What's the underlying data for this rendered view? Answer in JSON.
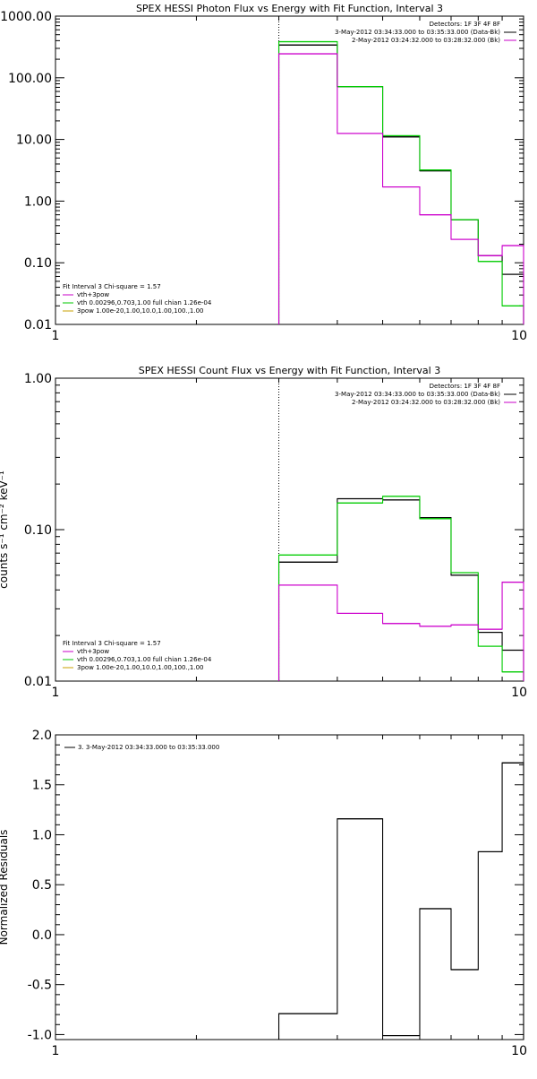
{
  "chart_data": [
    {
      "type": "line",
      "title": "SPEX HESSI Photon Flux vs Energy with Fit Function, Interval 3",
      "xlabel": "",
      "ylabel": "",
      "xscale": "log",
      "yscale": "log",
      "xlim": [
        1,
        10
      ],
      "ylim": [
        0.01,
        1000
      ],
      "x_ticks": [
        "1",
        "10"
      ],
      "y_ticks": [
        "0.01",
        "0.10",
        "1.00",
        "10.00",
        "100.00",
        "1000.00"
      ],
      "y_tick_values": [
        0.01,
        0.1,
        1,
        10,
        100,
        1000
      ],
      "vline": 3,
      "legend_top": [
        "Detectors: 1F 3F 4F 8F",
        "3-May-2012 03:34:33.000 to 03:35:33.000 (Data-Bk)",
        "2-May-2012 03:24:32.000 to 03:28:32.000 (Bk)"
      ],
      "legend_top_colors": [
        "",
        "#000000",
        "#c800c8"
      ],
      "legend_bottom": [
        "Fit Interval 3   Chi-square = 1.57",
        "vth+3pow",
        "vth 0.00296,0.703,1.00  full chian 1.26e-04",
        "3pow 1.00e-20,1.00,10.0,1.00,100.,1.00"
      ],
      "legend_bottom_colors": [
        "",
        "#c800c8",
        "#00c800",
        "#c8a000"
      ],
      "bin_edges": [
        3,
        4,
        5,
        6,
        7,
        8,
        9,
        10
      ],
      "series": [
        {
          "color": "#000000",
          "values": [
            340,
            72,
            11,
            3.1,
            0.5,
            0.13,
            0.065
          ]
        },
        {
          "color": "#00cc00",
          "values": [
            385,
            72,
            11.5,
            3.2,
            0.5,
            0.105,
            0.02
          ]
        },
        {
          "color": "#cc00cc",
          "values": [
            245,
            12.5,
            1.7,
            0.6,
            0.24,
            0.13,
            0.19
          ]
        }
      ]
    },
    {
      "type": "line",
      "title": "SPEX HESSI Count Flux vs Energy with Fit Function, Interval 3",
      "xlabel": "",
      "ylabel": "counts s⁻¹ cm⁻² keV⁻¹",
      "xscale": "log",
      "yscale": "log",
      "xlim": [
        1,
        10
      ],
      "ylim": [
        0.01,
        1.0
      ],
      "x_ticks": [
        "1",
        "10"
      ],
      "y_ticks": [
        "0.01",
        "0.10",
        "1.00"
      ],
      "y_tick_values": [
        0.01,
        0.1,
        1.0
      ],
      "vline": 3,
      "legend_top": [
        "Detectors: 1F 3F 4F 8F",
        "3-May-2012 03:34:33.000 to 03:35:33.000 (Data-Bk)",
        "2-May-2012 03:24:32.000 to 03:28:32.000 (Bk)"
      ],
      "legend_top_colors": [
        "",
        "#000000",
        "#c800c8"
      ],
      "legend_bottom": [
        "Fit Interval 3   Chi-square = 1.57",
        "vth+3pow",
        "vth 0.00296,0.703,1.00  full chian 1.26e-04",
        "3pow 1.00e-20,1.00,10.0,1.00,100.,1.00"
      ],
      "legend_bottom_colors": [
        "",
        "#c800c8",
        "#00c800",
        "#c8a000"
      ],
      "bin_edges": [
        3,
        4,
        5,
        6,
        7,
        8,
        9,
        10
      ],
      "series": [
        {
          "color": "#000000",
          "values": [
            0.061,
            0.16,
            0.157,
            0.12,
            0.05,
            0.021,
            0.016
          ]
        },
        {
          "color": "#00cc00",
          "values": [
            0.068,
            0.15,
            0.166,
            0.118,
            0.052,
            0.017,
            0.0115
          ]
        },
        {
          "color": "#cc00cc",
          "values": [
            0.043,
            0.028,
            0.024,
            0.023,
            0.0235,
            0.022,
            0.045
          ]
        }
      ]
    },
    {
      "type": "line",
      "title": "",
      "xlabel": "",
      "ylabel": "Normalized Residuals",
      "xscale": "log",
      "yscale": "linear",
      "xlim": [
        1,
        10
      ],
      "ylim": [
        -1.05,
        2.0
      ],
      "x_ticks": [
        "1",
        "10"
      ],
      "y_ticks": [
        "-1.0",
        "-0.5",
        "0.0",
        "0.5",
        "1.0",
        "1.5",
        "2.0"
      ],
      "y_tick_values": [
        -1.0,
        -0.5,
        0.0,
        0.5,
        1.0,
        1.5,
        2.0
      ],
      "legend_top": [],
      "legend_top_colors": [],
      "legend_bottom": [],
      "legend_bottom_colors": [],
      "legend_left": "3. 3-May-2012 03:34:33.000 to 03:35:33.000",
      "bin_edges": [
        3,
        4,
        5,
        6,
        7,
        8,
        9,
        10
      ],
      "series": [
        {
          "color": "#000000",
          "values": [
            -0.79,
            1.16,
            -1.01,
            0.26,
            -0.35,
            0.83,
            1.72
          ]
        }
      ]
    }
  ]
}
